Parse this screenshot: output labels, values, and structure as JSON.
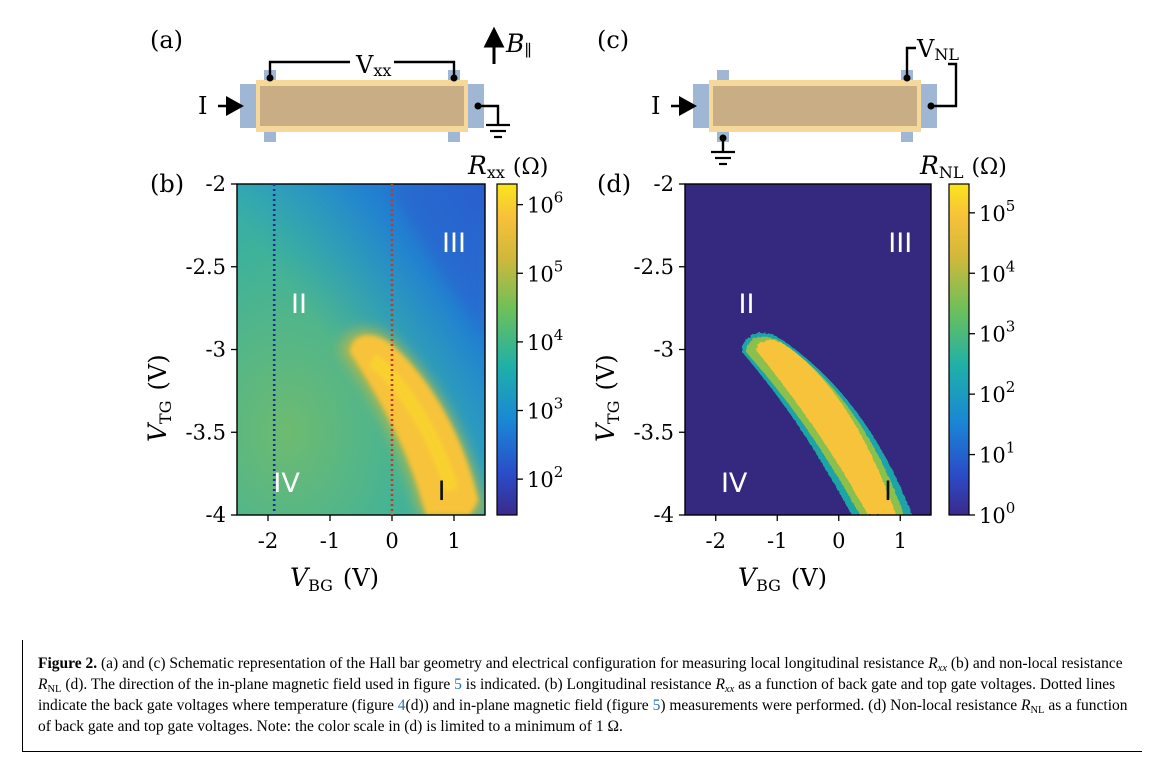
{
  "panel_labels": {
    "a": "(a)",
    "b": "(b)",
    "c": "(c)",
    "d": "(d)"
  },
  "schematic": {
    "current_label": "I",
    "vxx_label": {
      "base": "V",
      "sub": "xx"
    },
    "vnl_label": {
      "base": "V",
      "sub": "NL"
    },
    "bfield_label": {
      "base": "B",
      "sub": "∥"
    }
  },
  "regions": [
    "I",
    "II",
    "III",
    "IV"
  ],
  "chart_data": [
    {
      "type": "heatmap",
      "panel": "(b)",
      "quantity": "Rxx",
      "xlabel": {
        "base": "V",
        "sub": "BG",
        "unit": "(V)"
      },
      "ylabel": {
        "base": "V",
        "sub": "TG",
        "unit": "(V)"
      },
      "xlim": [
        -2.5,
        1.5
      ],
      "ylim": [
        -4,
        -2
      ],
      "xticks": [
        "-2",
        "-1",
        "0",
        "1"
      ],
      "yticks": [
        "-2",
        "-2.5",
        "-3",
        "-3.5",
        "-4"
      ],
      "colorbar": {
        "label": {
          "base": "R",
          "sub": "xx",
          "unit": "(Ω)"
        },
        "scale": "log",
        "range": [
          30,
          2000000
        ],
        "ticks": [
          {
            "base": "10",
            "exp": "2"
          },
          {
            "base": "10",
            "exp": "3"
          },
          {
            "base": "10",
            "exp": "4"
          },
          {
            "base": "10",
            "exp": "5"
          },
          {
            "base": "10",
            "exp": "6"
          }
        ],
        "colormap": "viridis-like"
      },
      "dotted_lines": [
        {
          "x": -1.9,
          "color": "#1f2d8f"
        },
        {
          "x": 0.0,
          "color": "#c0392b"
        }
      ],
      "region_labels": [
        {
          "text": "I",
          "x": 0.8,
          "y": -3.85
        },
        {
          "text": "II",
          "x": -1.5,
          "y": -2.72
        },
        {
          "text": "III",
          "x": 1.0,
          "y": -2.35
        },
        {
          "text": "IV",
          "x": -1.7,
          "y": -3.8
        }
      ]
    },
    {
      "type": "heatmap",
      "panel": "(d)",
      "quantity": "RNL",
      "xlabel": {
        "base": "V",
        "sub": "BG",
        "unit": "(V)"
      },
      "ylabel": {
        "base": "V",
        "sub": "TG",
        "unit": "(V)"
      },
      "xlim": [
        -2.5,
        1.5
      ],
      "ylim": [
        -4,
        -2
      ],
      "xticks": [
        "-2",
        "-1",
        "0",
        "1"
      ],
      "yticks": [
        "-2",
        "-2.5",
        "-3",
        "-3.5",
        "-4"
      ],
      "colorbar": {
        "label": {
          "base": "R",
          "sub": "NL",
          "unit": "(Ω)"
        },
        "scale": "log",
        "range": [
          1,
          300000
        ],
        "ticks": [
          {
            "base": "10",
            "exp": "0"
          },
          {
            "base": "10",
            "exp": "1"
          },
          {
            "base": "10",
            "exp": "2"
          },
          {
            "base": "10",
            "exp": "3"
          },
          {
            "base": "10",
            "exp": "4"
          },
          {
            "base": "10",
            "exp": "5"
          }
        ],
        "colormap": "viridis-like"
      },
      "region_labels": [
        {
          "text": "I",
          "x": 0.8,
          "y": -3.85
        },
        {
          "text": "II",
          "x": -1.5,
          "y": -2.72
        },
        {
          "text": "III",
          "x": 1.0,
          "y": -2.35
        },
        {
          "text": "IV",
          "x": -1.7,
          "y": -3.8
        }
      ]
    }
  ],
  "caption": {
    "label": "Figure 2.",
    "s1": " (a) and (c) Schematic representation of the Hall bar geometry and electrical configuration for measuring local longitudinal resistance ",
    "s2": " (b) and non-local resistance ",
    "s3": " (d). The direction of the in-plane magnetic field used in figure ",
    "ref5a": "5",
    "s4": " is indicated. (b) Longitudinal resistance ",
    "s5": " as a function of back gate and top gate voltages. Dotted lines indicate the back gate voltages where temperature (figure ",
    "ref4d": "4",
    "s6": "(d)) and in-plane magnetic field (figure ",
    "ref5b": "5",
    "s7": ") measurements were performed. (d) Non-local resistance ",
    "s8": " as a function of back gate and top gate voltages. Note: the color scale in (d) is limited to a minimum of 1 Ω.",
    "sym_R": "R",
    "sub_xx": "xx",
    "sub_NL": "NL"
  }
}
